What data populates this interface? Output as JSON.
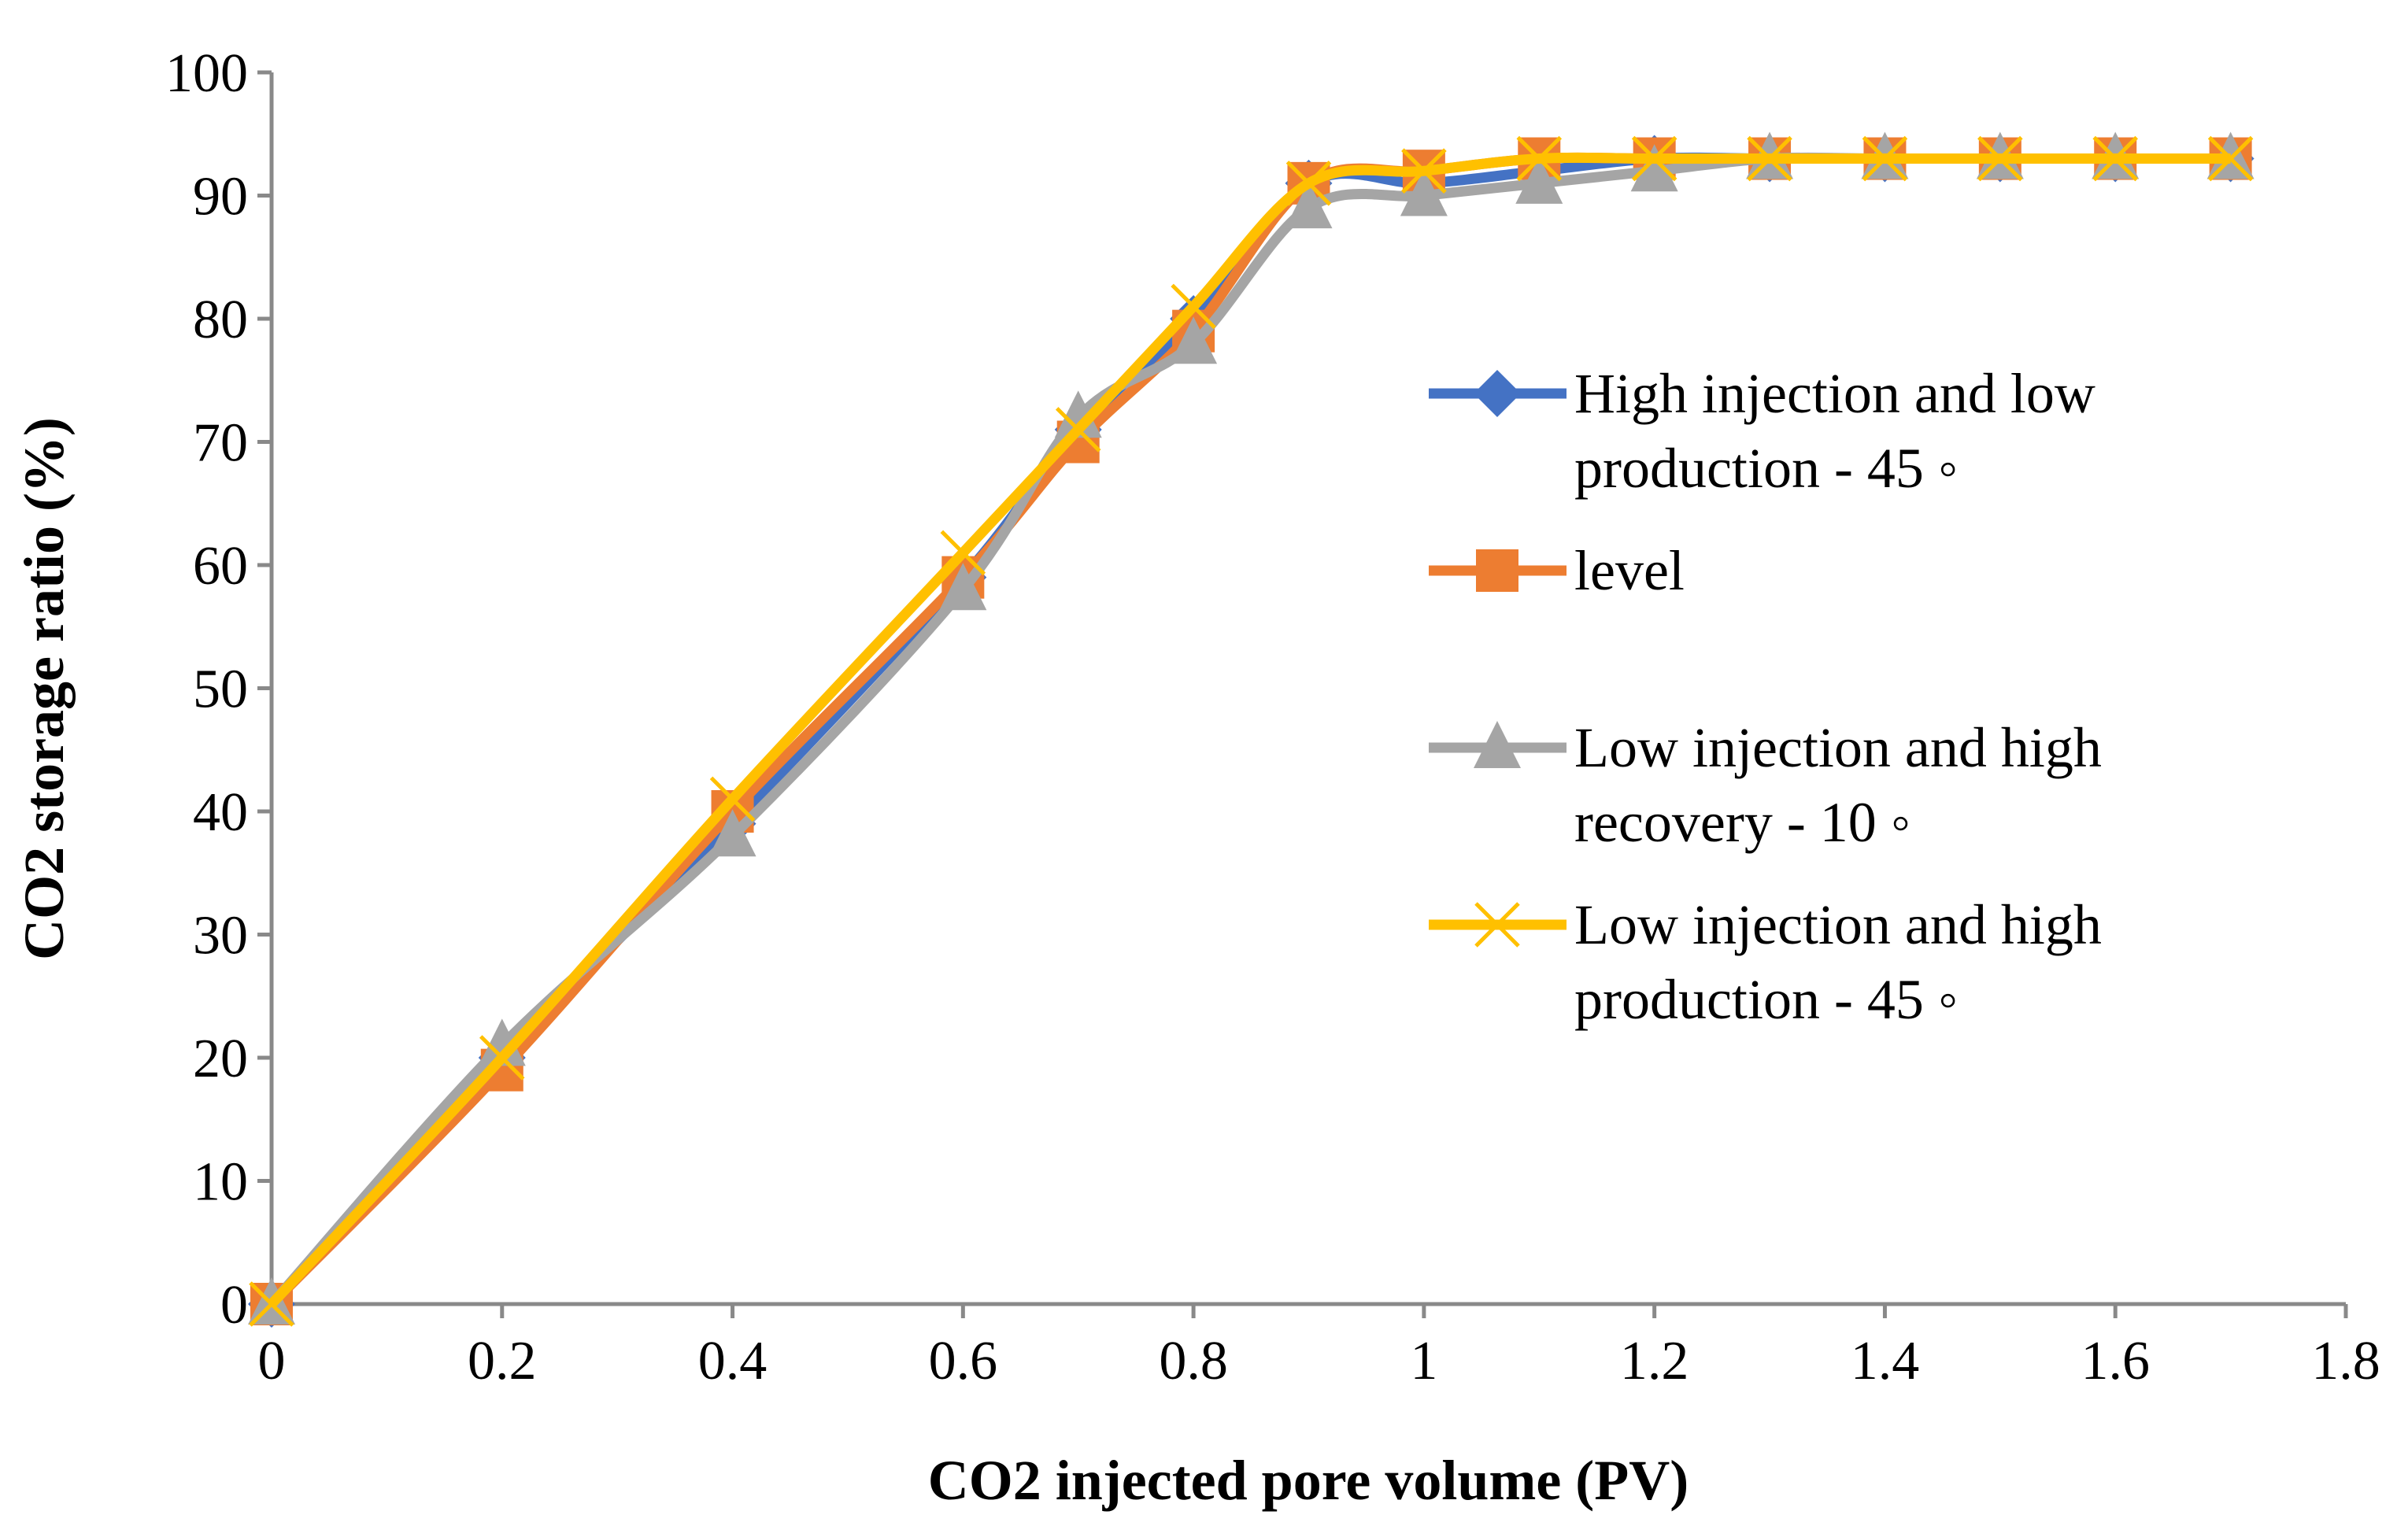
{
  "chart_data": {
    "type": "line",
    "title": "",
    "xlabel": "CO2 injected pore volume (PV)",
    "ylabel": "CO2 storage ratio (%)",
    "xlim": [
      0,
      1.8
    ],
    "ylim": [
      0,
      100
    ],
    "xticks": [
      "0",
      "0.2",
      "0.4",
      "0.6",
      "0.8",
      "1",
      "1.2",
      "1.4",
      "1.6",
      "1.8"
    ],
    "yticks": [
      "0",
      "10",
      "20",
      "30",
      "40",
      "50",
      "60",
      "70",
      "80",
      "90",
      "100"
    ],
    "grid": false,
    "legend_position": "right",
    "x": [
      0,
      0.2,
      0.4,
      0.6,
      0.7,
      0.8,
      0.9,
      1.0,
      1.1,
      1.2,
      1.3,
      1.4,
      1.5,
      1.6,
      1.7
    ],
    "series": [
      {
        "name": "High injection and low production - 45 ◦",
        "legend_lines": [
          "High injection and low",
          "production - 45 ◦"
        ],
        "color": "#4472C4",
        "marker": "diamond",
        "values": [
          0,
          20,
          39,
          59,
          71,
          80,
          91,
          91,
          92,
          93,
          93,
          93,
          93,
          93,
          93
        ]
      },
      {
        "name": "level",
        "legend_lines": [
          "level"
        ],
        "color": "#ED7D31",
        "marker": "square",
        "values": [
          0,
          19,
          40,
          59,
          70,
          79,
          91,
          92,
          93,
          93,
          93,
          93,
          93,
          93,
          93
        ]
      },
      {
        "name": "Low injection and high recovery - 10 ◦",
        "legend_lines": [
          "Low injection and high",
          "recovery - 10 ◦"
        ],
        "color": "#A5A5A5",
        "marker": "triangle",
        "values": [
          0,
          21,
          38,
          58,
          72,
          78,
          89,
          90,
          91,
          92,
          93,
          93,
          93,
          93,
          93
        ]
      },
      {
        "name": "Low injection and high production - 45 ◦",
        "legend_lines": [
          "Low injection and high",
          "production - 45 ◦"
        ],
        "color": "#FFC000",
        "marker": "x",
        "values": [
          0,
          20,
          41,
          61,
          71,
          81,
          91,
          92,
          93,
          93,
          93,
          93,
          93,
          93,
          93
        ]
      }
    ]
  }
}
